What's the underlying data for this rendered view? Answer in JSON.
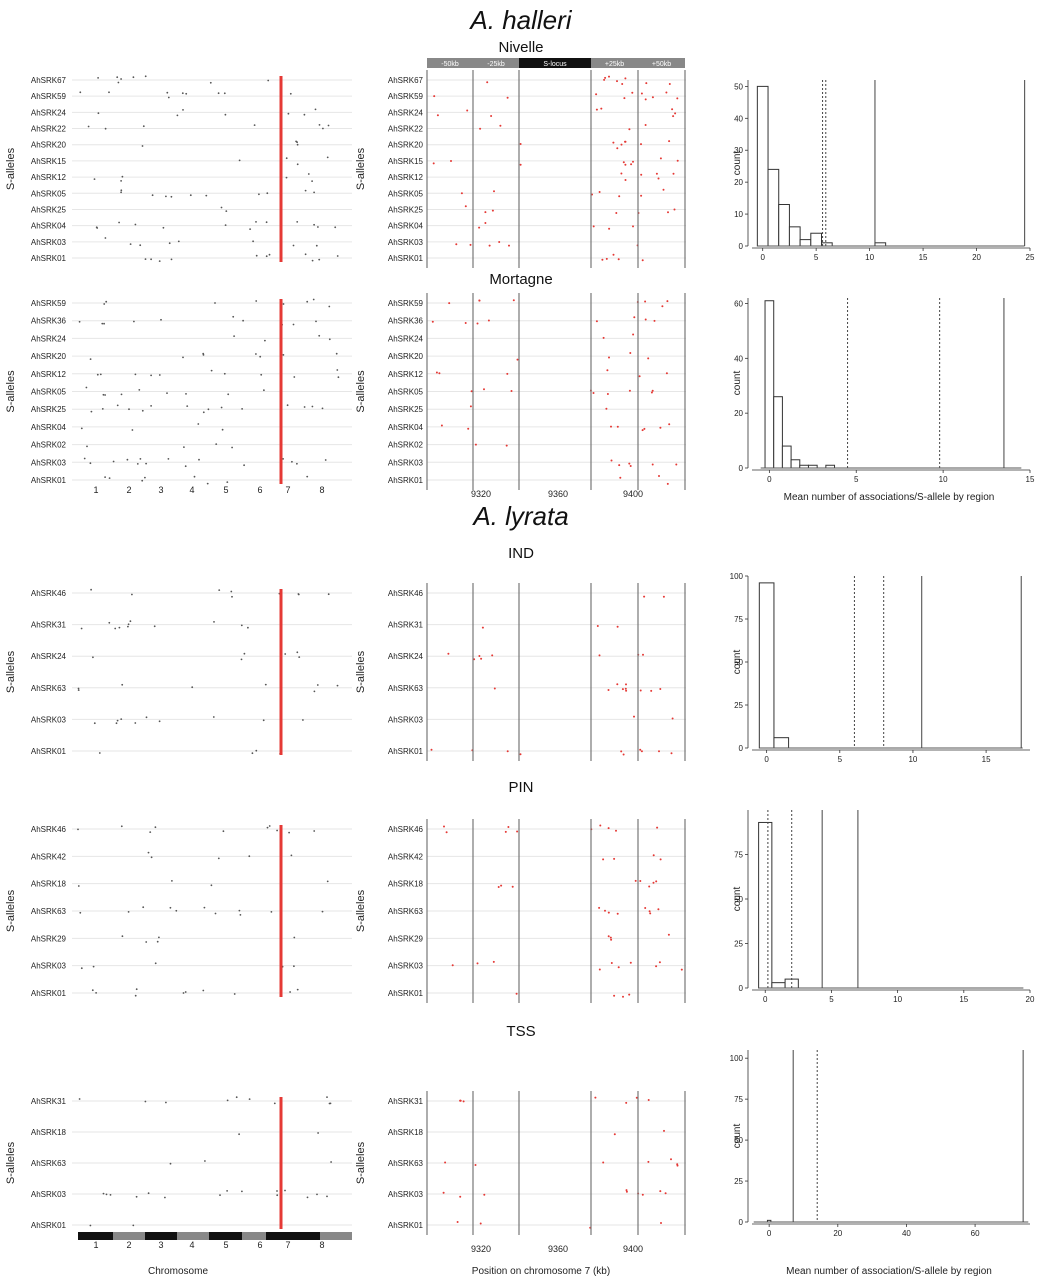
{
  "figure": {
    "species": [
      {
        "name": "A. halleri",
        "italic": true
      },
      {
        "name": "A. lyrata",
        "italic": true
      }
    ],
    "ylabel_panels": "S-alleles",
    "hist_ylabel": "count",
    "footer": {
      "chrom_xlabel": "Chromosome",
      "zoom_xlabel": "Position on chromosome 7 (kb)",
      "hist_xlabel": "Mean number of association/S-allele by region"
    },
    "mortagne_hist_xlabel": "Mean number of associations/S-allele by region",
    "region_labels": [
      "-50kb",
      "-25kb",
      "S-locus",
      "+25kb",
      "+50kb"
    ],
    "chrom_ticks": [
      "1",
      "2",
      "3",
      "4",
      "5",
      "6",
      "7",
      "8"
    ],
    "zoom_ticks": [
      "9320",
      "9360",
      "9400"
    ],
    "colors": {
      "sig": "#e53935",
      "dot": "#555555",
      "grid": "#e6e6e6",
      "line": "#777777",
      "band": "#888888"
    }
  },
  "chart_data": [
    {
      "type": "scatter",
      "title": "Nivelle",
      "species": "A. halleri",
      "alleles": [
        "AhSRK67",
        "AhSRK59",
        "AhSRK24",
        "AhSRK22",
        "AhSRK20",
        "AhSRK15",
        "AhSRK12",
        "AhSRK05",
        "AhSRK25",
        "AhSRK04",
        "AhSRK03",
        "AhSRK01"
      ],
      "hist": {
        "bins": [
          0,
          1,
          2,
          3,
          4,
          5,
          6,
          7,
          8,
          9,
          10,
          11
        ],
        "counts": [
          50,
          24,
          13,
          6,
          2,
          4,
          1,
          0,
          0,
          0,
          0,
          1
        ],
        "xlim": [
          -1,
          25
        ],
        "ylim": [
          0,
          52
        ],
        "yticks": [
          0,
          10,
          20,
          30,
          40,
          50
        ],
        "xticks": [
          0,
          5,
          10,
          15,
          20,
          25
        ],
        "vlines": [
          {
            "x": 5.6,
            "style": "dotted"
          },
          {
            "x": 5.9,
            "style": "dotted"
          },
          {
            "x": 10.5,
            "style": "solid"
          },
          {
            "x": 24.5,
            "style": "solid"
          }
        ],
        "show_xlabel": false
      }
    },
    {
      "type": "scatter",
      "title": "Mortagne",
      "species": "A. halleri",
      "alleles": [
        "AhSRK59",
        "AhSRK36",
        "AhSRK24",
        "AhSRK20",
        "AhSRK12",
        "AhSRK05",
        "AhSRK25",
        "AhSRK04",
        "AhSRK02",
        "AhSRK03",
        "AhSRK01"
      ],
      "hist": {
        "bins": [
          0,
          0.5,
          1,
          1.5,
          2,
          2.5,
          3,
          3.5
        ],
        "counts": [
          61,
          26,
          8,
          3,
          1,
          1,
          0,
          1
        ],
        "xlim": [
          -1,
          15
        ],
        "ylim": [
          0,
          62
        ],
        "yticks": [
          0,
          20,
          40,
          60
        ],
        "xticks": [
          0,
          5,
          10,
          15
        ],
        "vlines": [
          {
            "x": 4.5,
            "style": "dotted"
          },
          {
            "x": 9.8,
            "style": "dotted"
          },
          {
            "x": 13.5,
            "style": "solid"
          }
        ],
        "show_xlabel": true
      }
    },
    {
      "type": "scatter",
      "title": "IND",
      "species": "A. lyrata",
      "alleles": [
        "AhSRK46",
        "AhSRK31",
        "AhSRK24",
        "AhSRK63",
        "AhSRK03",
        "AhSRK01"
      ],
      "hist": {
        "bins": [
          0,
          1
        ],
        "counts": [
          96,
          6
        ],
        "xlim": [
          -1,
          18
        ],
        "ylim": [
          0,
          100
        ],
        "yticks": [
          0,
          25,
          50,
          75,
          100
        ],
        "xticks": [
          0,
          5,
          10,
          15
        ],
        "vlines": [
          {
            "x": 6.0,
            "style": "dotted"
          },
          {
            "x": 8.0,
            "style": "dotted"
          },
          {
            "x": 10.6,
            "style": "solid"
          },
          {
            "x": 17.4,
            "style": "solid"
          }
        ],
        "show_xlabel": false
      }
    },
    {
      "type": "scatter",
      "title": "PIN",
      "species": "A. lyrata",
      "alleles": [
        "AhSRK46",
        "AhSRK42",
        "AhSRK18",
        "AhSRK63",
        "AhSRK29",
        "AhSRK03",
        "AhSRK01"
      ],
      "hist": {
        "bins": [
          0,
          1,
          2
        ],
        "counts": [
          93,
          3,
          5
        ],
        "xlim": [
          -1,
          20
        ],
        "ylim": [
          0,
          100
        ],
        "yticks": [
          0,
          25,
          50,
          75
        ],
        "xticks": [
          0,
          5,
          10,
          15,
          20
        ],
        "vlines": [
          {
            "x": 0.2,
            "style": "dotted"
          },
          {
            "x": 2.0,
            "style": "dotted"
          },
          {
            "x": 4.3,
            "style": "solid"
          },
          {
            "x": 7.0,
            "style": "solid"
          }
        ],
        "show_xlabel": false
      }
    },
    {
      "type": "scatter",
      "title": "TSS",
      "species": "A. lyrata",
      "alleles": [
        "AhSRK31",
        "AhSRK18",
        "AhSRK63",
        "AhSRK03",
        "AhSRK01"
      ],
      "hist": {
        "bins": [
          0
        ],
        "counts": [
          1
        ],
        "xlim": [
          -5,
          76
        ],
        "ylim": [
          0,
          105
        ],
        "yticks": [
          0,
          25,
          50,
          75,
          100
        ],
        "xticks": [
          0,
          20,
          40,
          60
        ],
        "vlines": [
          {
            "x": 7.0,
            "style": "solid"
          },
          {
            "x": 14.0,
            "style": "dotted"
          },
          {
            "x": 74.0,
            "style": "solid"
          }
        ],
        "show_xlabel": false
      }
    }
  ]
}
